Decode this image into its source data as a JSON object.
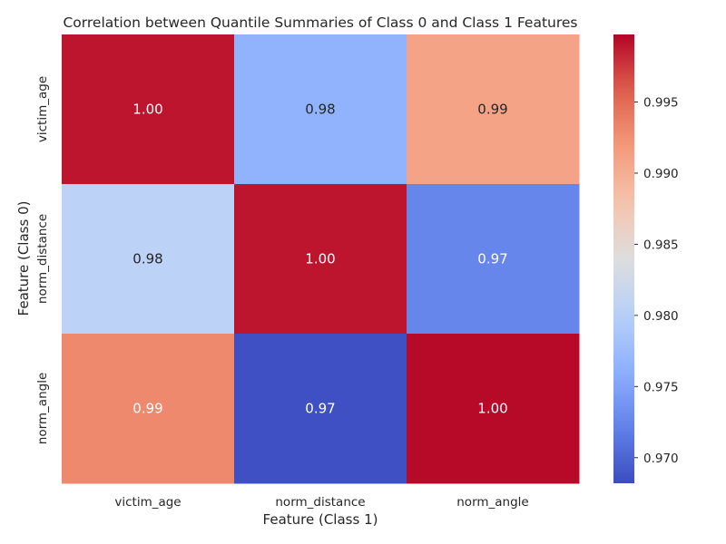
{
  "chart_data": {
    "type": "heatmap",
    "title": "Correlation between Quantile Summaries of Class 0 and Class 1 Features",
    "xlabel": "Feature (Class 1)",
    "ylabel": "Feature (Class 0)",
    "x_categories": [
      "victim_age",
      "norm_distance",
      "norm_angle"
    ],
    "y_categories": [
      "victim_age",
      "norm_distance",
      "norm_angle"
    ],
    "values": [
      [
        0.999,
        0.9765,
        0.991
      ],
      [
        0.9805,
        0.999,
        0.9725
      ],
      [
        0.993,
        0.9685,
        0.9995
      ]
    ],
    "annotations": [
      [
        "1.00",
        "0.98",
        "0.99"
      ],
      [
        "0.98",
        "1.00",
        "0.97"
      ],
      [
        "0.99",
        "0.97",
        "1.00"
      ]
    ],
    "colormap": "coolwarm",
    "colorbar": {
      "range": [
        0.9682,
        0.99975
      ],
      "ticks": [
        0.97,
        0.975,
        0.98,
        0.985,
        0.99,
        0.995
      ],
      "tick_labels": [
        "0.970",
        "0.975",
        "0.980",
        "0.985",
        "0.990",
        "0.995"
      ]
    },
    "grid": false
  }
}
